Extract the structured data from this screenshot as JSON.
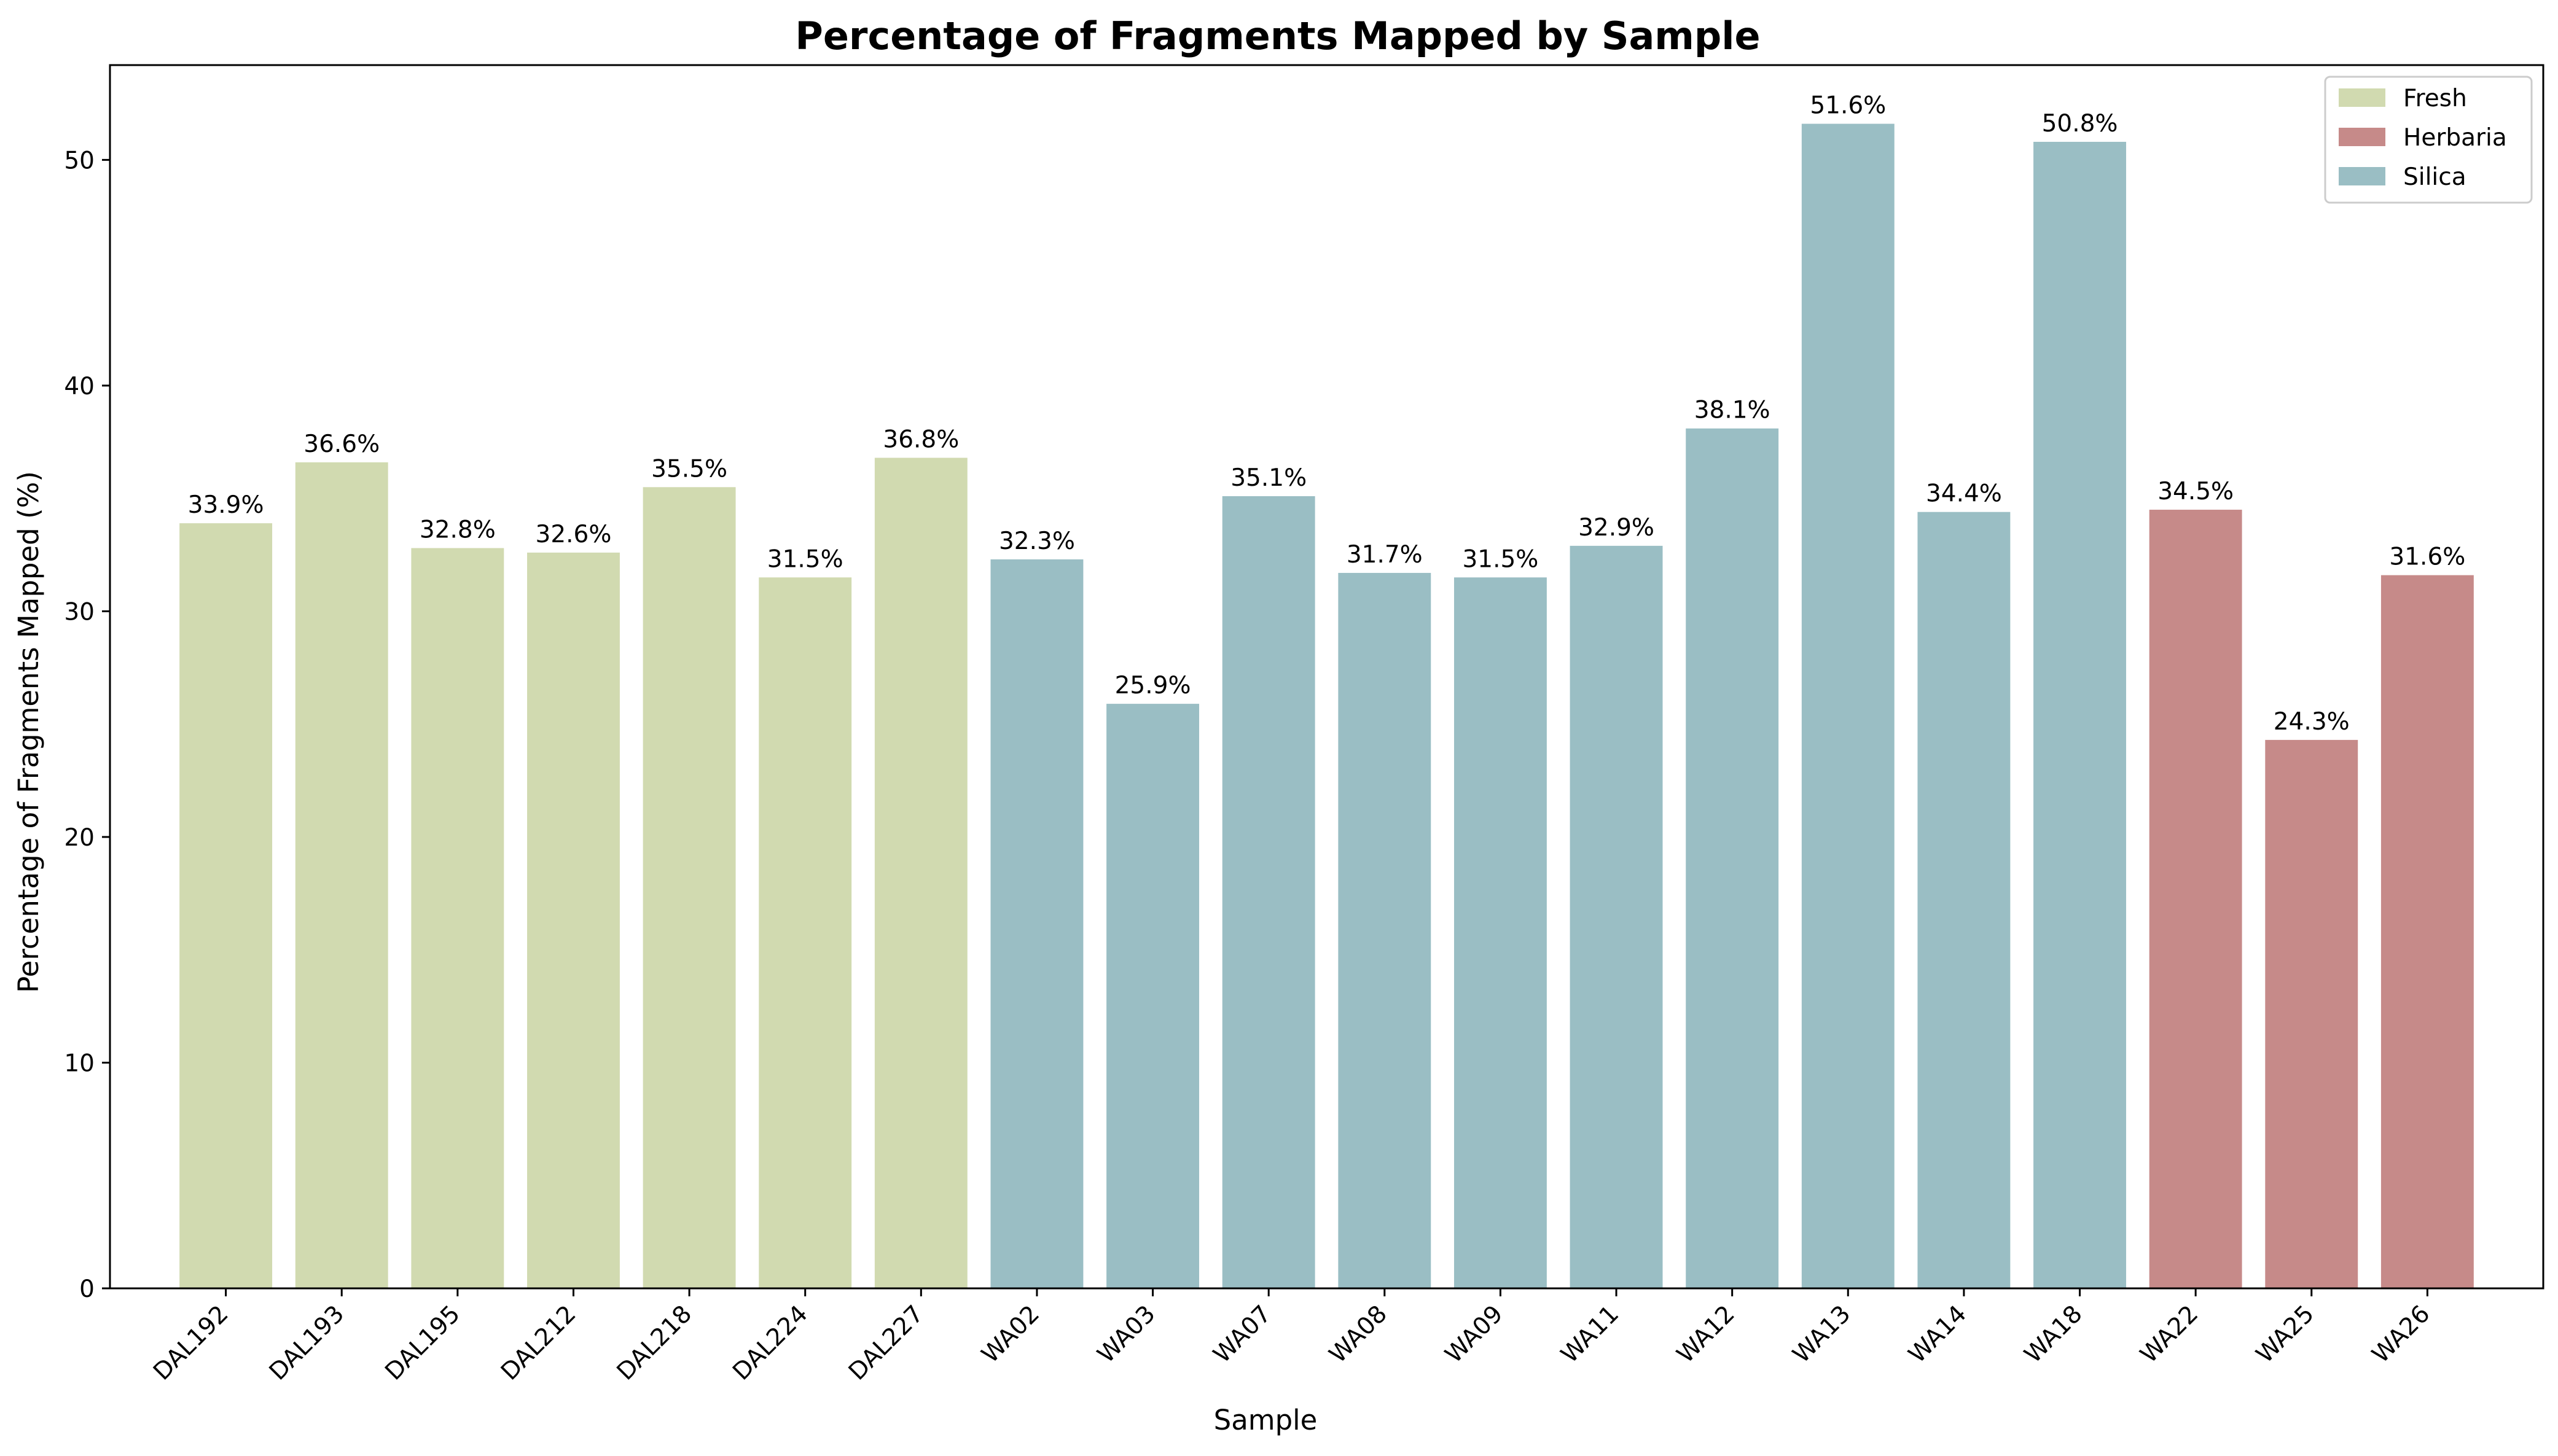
{
  "chart_data": {
    "type": "bar",
    "title": "Percentage of Fragments Mapped by Sample",
    "xlabel": "Sample",
    "ylabel": "Percentage of Fragments Mapped (%)",
    "ylim": [
      0,
      54.2
    ],
    "yticks": [
      0,
      10,
      20,
      30,
      40,
      50
    ],
    "grid": false,
    "legend_position": "top-right",
    "value_label_suffix": "%",
    "categories": [
      "DAL192",
      "DAL193",
      "DAL195",
      "DAL212",
      "DAL218",
      "DAL224",
      "DAL227",
      "WA02",
      "WA03",
      "WA07",
      "WA08",
      "WA09",
      "WA11",
      "WA12",
      "WA13",
      "WA14",
      "WA18",
      "WA22",
      "WA25",
      "WA26"
    ],
    "values": [
      33.9,
      36.6,
      32.8,
      32.6,
      35.5,
      31.5,
      36.8,
      32.3,
      25.9,
      35.1,
      31.7,
      31.5,
      32.9,
      38.1,
      51.6,
      34.4,
      50.8,
      34.5,
      24.3,
      31.6
    ],
    "groups": [
      "Fresh",
      "Fresh",
      "Fresh",
      "Fresh",
      "Fresh",
      "Fresh",
      "Fresh",
      "Silica",
      "Silica",
      "Silica",
      "Silica",
      "Silica",
      "Silica",
      "Silica",
      "Silica",
      "Silica",
      "Silica",
      "Herbaria",
      "Herbaria",
      "Herbaria"
    ],
    "legend": [
      {
        "name": "Fresh",
        "color": "#d1dab0"
      },
      {
        "name": "Herbaria",
        "color": "#c68a89"
      },
      {
        "name": "Silica",
        "color": "#9abec4"
      }
    ]
  }
}
